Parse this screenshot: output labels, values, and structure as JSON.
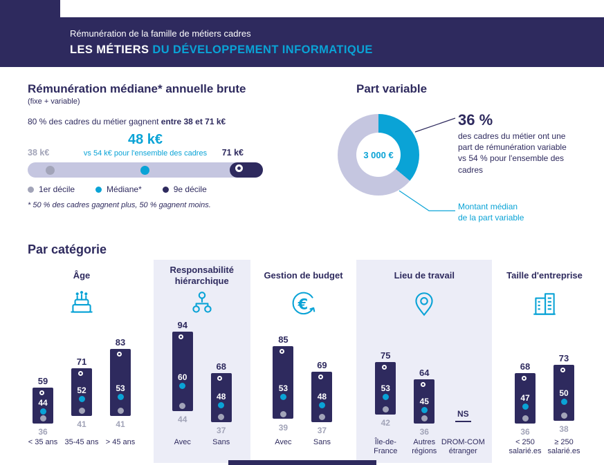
{
  "colors": {
    "navy": "#2e2a5e",
    "cyan": "#0aa3d6",
    "lavender": "#c5c6e0",
    "panel": "#ecedf7",
    "grey": "#a2a4b8"
  },
  "header": {
    "line1": "Rémunération de la famille de métiers cadres",
    "line2_white": "LES MÉTIERS ",
    "line2_accent": "DU DÉVELOPPEMENT INFORMATIQUE"
  },
  "median_section": {
    "title": "Rémunération médiane* annuelle brute",
    "subtitle": "(fixe + variable)",
    "range_prefix": "80 % des cadres du métier gagnent ",
    "range_bold": "entre 38 et 71 k€",
    "median_value": "48 k€",
    "vs_text": "vs 54 k€ pour l'ensemble des cadres",
    "low_value": "38 k€",
    "high_value": "71 k€",
    "legend": [
      {
        "label": "1er décile"
      },
      {
        "label": "Médiane*"
      },
      {
        "label": "9e décile"
      }
    ],
    "footnote": "* 50 % des cadres gagnent plus, 50 % gagnent moins."
  },
  "part_variable": {
    "title": "Part variable",
    "pct_value": "36 %",
    "description": "des cadres du métier ont une part de rémunération variable vs 54 % pour l'ensemble des cadres",
    "callout": "Montant médian\nde la part variable"
  },
  "categories_title": "Par catégorie",
  "chart_data": [
    {
      "type": "table",
      "title": "Rémunération médiane annuelle brute (fixe + variable)",
      "unit": "k€",
      "decile1": 38,
      "median": 48,
      "decile9": 71,
      "overall_cadres_median": 54,
      "note": "80 % des cadres du métier gagnent entre 38 et 71 k€"
    },
    {
      "type": "pie",
      "title": "Part variable",
      "labels": [
        "avec part variable",
        "sans part variable"
      ],
      "values": [
        36,
        64
      ],
      "overall_cadres_pct": 54,
      "center_label": "3 000 €",
      "center_meaning": "Montant médian de la part variable"
    },
    {
      "type": "bar",
      "title": "Par catégorie",
      "unit": "k€",
      "value_axis": {
        "min": 30,
        "max": 94
      },
      "series_meaning": [
        "d1 = 1er décile",
        "median = médiane",
        "d9 = 9e décile"
      ],
      "groups": [
        {
          "name": "Âge",
          "icon": "cake-icon",
          "panel": false,
          "bars": [
            {
              "label": "< 35 ans",
              "d1": 36,
              "median": 44,
              "d9": 59
            },
            {
              "label": "35-45 ans",
              "d1": 41,
              "median": 52,
              "d9": 71
            },
            {
              "label": "> 45 ans",
              "d1": 41,
              "median": 53,
              "d9": 83
            }
          ]
        },
        {
          "name": "Responsabilité\nhiérarchique",
          "icon": "hierarchy-icon",
          "panel": true,
          "bars": [
            {
              "label": "Avec",
              "d1": 44,
              "median": 60,
              "d9": 94
            },
            {
              "label": "Sans",
              "d1": 37,
              "median": 48,
              "d9": 68
            }
          ]
        },
        {
          "name": "Gestion de budget",
          "icon": "euro-icon",
          "panel": false,
          "bars": [
            {
              "label": "Avec",
              "d1": 39,
              "median": 53,
              "d9": 85
            },
            {
              "label": "Sans",
              "d1": 37,
              "median": 48,
              "d9": 69
            }
          ]
        },
        {
          "name": "Lieu de travail",
          "icon": "map-pin-icon",
          "panel": true,
          "bars": [
            {
              "label": "Île-de-\nFrance",
              "d1": 42,
              "median": 53,
              "d9": 75
            },
            {
              "label": "Autres\nrégions",
              "d1": 36,
              "median": 45,
              "d9": 64
            },
            {
              "label": "DROM-COM\nétranger",
              "ns": "NS"
            }
          ]
        },
        {
          "name": "Taille d'entreprise",
          "icon": "building-icon",
          "panel": false,
          "bars": [
            {
              "label": "< 250\nsalarié.es",
              "d1": 36,
              "median": 47,
              "d9": 68
            },
            {
              "label": "≥ 250\nsalarié.es",
              "d1": 38,
              "median": 50,
              "d9": 73
            }
          ]
        }
      ]
    }
  ]
}
